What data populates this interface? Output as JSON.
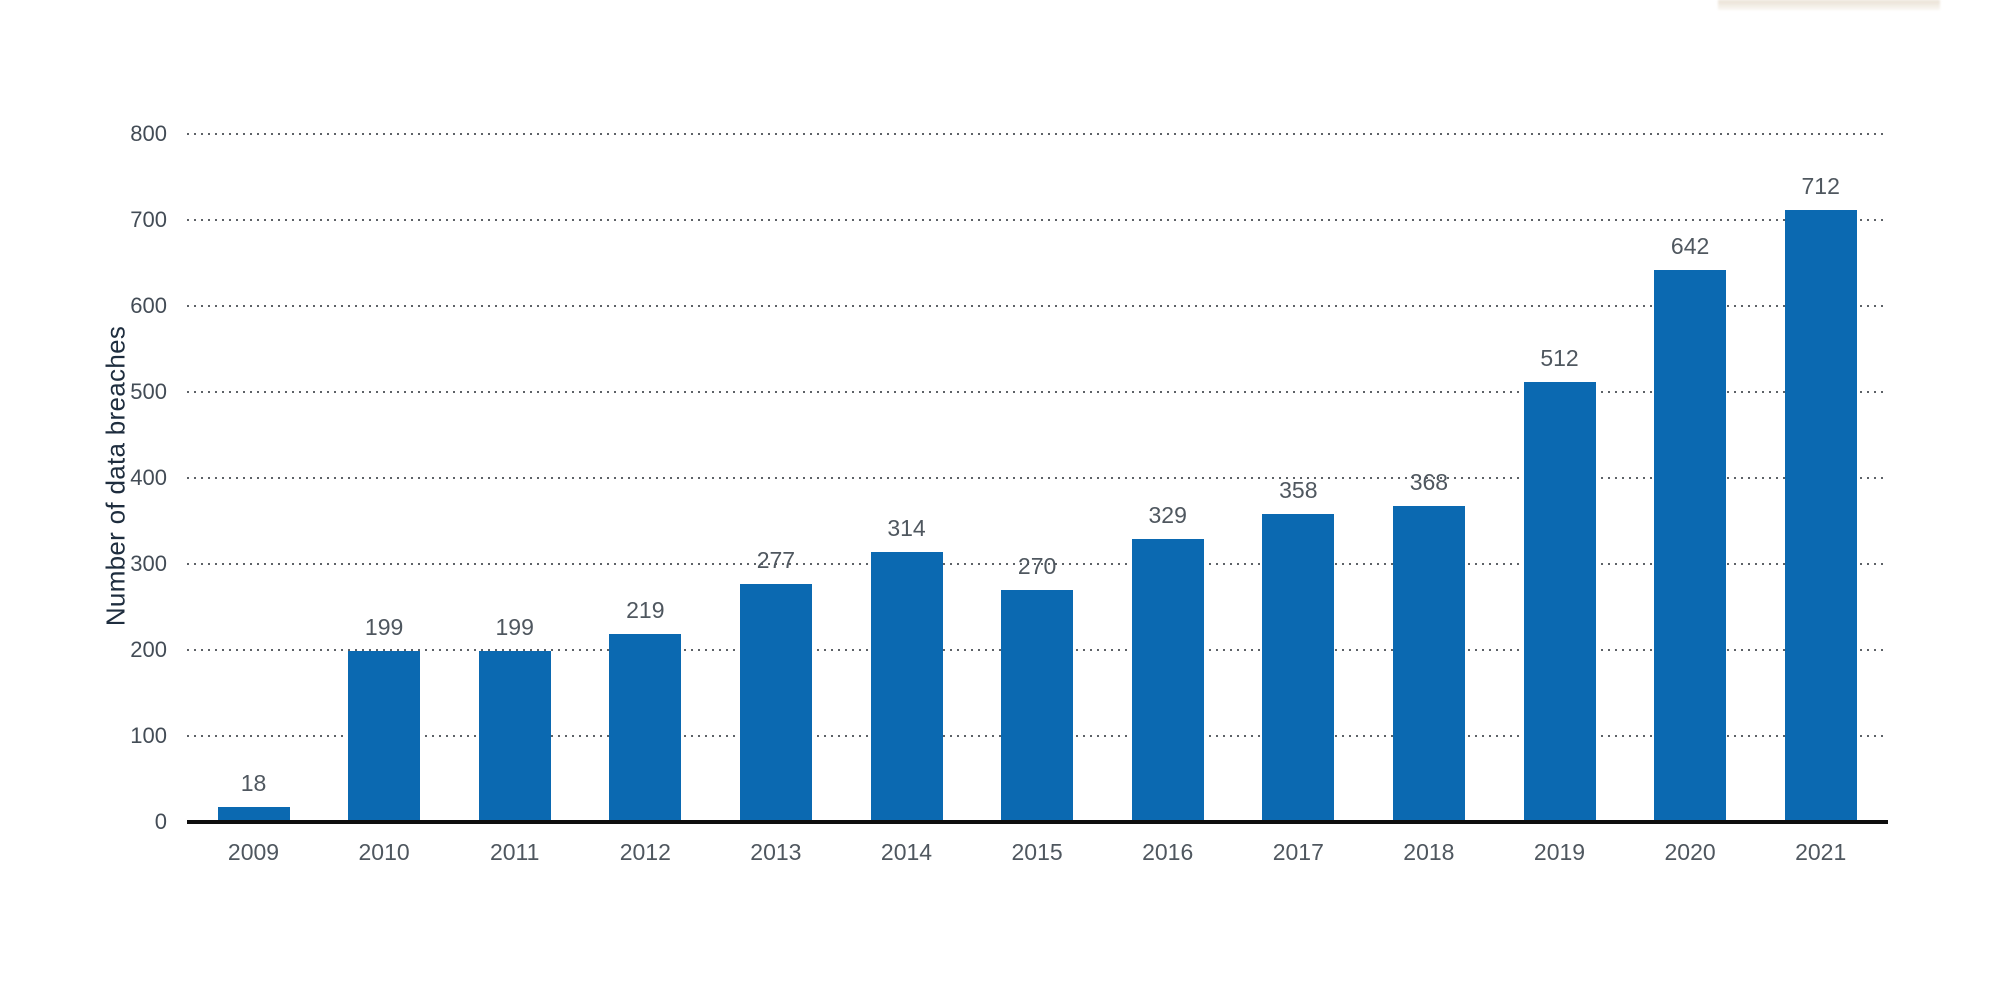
{
  "chart_data": {
    "type": "bar",
    "categories": [
      "2009",
      "2010",
      "2011",
      "2012",
      "2013",
      "2014",
      "2015",
      "2016",
      "2017",
      "2018",
      "2019",
      "2020",
      "2021"
    ],
    "values": [
      18,
      199,
      199,
      219,
      277,
      314,
      270,
      329,
      358,
      368,
      512,
      642,
      712
    ],
    "title": "",
    "xlabel": "",
    "ylabel": "Number of data breaches",
    "ylim": [
      0,
      800
    ],
    "yticks": [
      0,
      100,
      200,
      300,
      400,
      500,
      600,
      700,
      800
    ],
    "grid": "horizontal-dotted",
    "legend": "none",
    "value_labels_shown": true,
    "bar_color": "#0b69b1",
    "gridline_color": "#5d6267",
    "axis_line_color": "#0e0e0e",
    "tick_label_color": "#434c56",
    "value_label_color": "#4f575f",
    "axis_title_color": "#1e2d3e",
    "background_color": "#ffffff"
  }
}
